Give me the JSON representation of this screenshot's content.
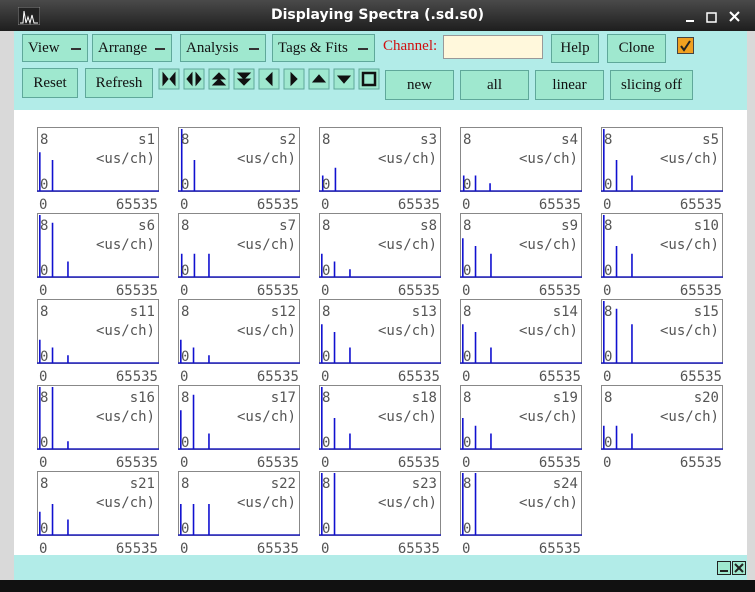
{
  "window": {
    "title": "Displaying Spectra (.sd.s0)"
  },
  "menus": [
    "View",
    "Arrange",
    "Analysis",
    "Tags & Fits"
  ],
  "channel_label": "Channel:",
  "buttons": [
    "Help",
    "Clone"
  ],
  "actions": [
    "Reset",
    "Refresh"
  ],
  "modes": [
    "new",
    "all",
    "linear",
    "slicing off"
  ],
  "spectra": [
    {
      "name": "s1",
      "unit": "<us/ch)",
      "xlim": [
        0,
        65535
      ],
      "ylim": [
        0,
        8
      ],
      "x": [
        1000,
        8000
      ],
      "y": [
        5,
        4
      ]
    },
    {
      "name": "s2",
      "unit": "<us/ch)",
      "xlim": [
        0,
        65535
      ],
      "ylim": [
        0,
        8
      ],
      "x": [
        1500,
        8500
      ],
      "y": [
        8,
        4
      ]
    },
    {
      "name": "s3",
      "unit": "<us/ch)",
      "xlim": [
        0,
        65535
      ],
      "ylim": [
        0,
        8
      ],
      "x": [
        1500,
        8500
      ],
      "y": [
        2,
        3
      ]
    },
    {
      "name": "s4",
      "unit": "<us/ch)",
      "xlim": [
        0,
        65535
      ],
      "ylim": [
        0,
        8
      ],
      "x": [
        1500,
        8000,
        16000
      ],
      "y": [
        2,
        2,
        1
      ]
    },
    {
      "name": "s5",
      "unit": "<us/ch)",
      "xlim": [
        0,
        65535
      ],
      "ylim": [
        0,
        8
      ],
      "x": [
        1000,
        8000,
        16500
      ],
      "y": [
        8,
        4,
        2
      ]
    },
    {
      "name": "s6",
      "unit": "<us/ch)",
      "xlim": [
        0,
        65535
      ],
      "ylim": [
        0,
        8
      ],
      "x": [
        1000,
        8000,
        16500
      ],
      "y": [
        8,
        7,
        2
      ]
    },
    {
      "name": "s7",
      "unit": "<us/ch)",
      "xlim": [
        0,
        65535
      ],
      "ylim": [
        0,
        8
      ],
      "x": [
        1500,
        8500,
        16500
      ],
      "y": [
        3,
        3,
        3
      ]
    },
    {
      "name": "s8",
      "unit": "<us/ch)",
      "xlim": [
        0,
        65535
      ],
      "ylim": [
        0,
        8
      ],
      "x": [
        1000,
        8000,
        16500
      ],
      "y": [
        3,
        2,
        1
      ]
    },
    {
      "name": "s9",
      "unit": "<us/ch)",
      "xlim": [
        0,
        65535
      ],
      "ylim": [
        0,
        8
      ],
      "x": [
        1000,
        8000,
        16500
      ],
      "y": [
        5,
        4,
        3
      ]
    },
    {
      "name": "s10",
      "unit": "<us/ch)",
      "xlim": [
        0,
        65535
      ],
      "ylim": [
        0,
        8
      ],
      "x": [
        1000,
        8000,
        16500
      ],
      "y": [
        8,
        4,
        3
      ]
    },
    {
      "name": "s11",
      "unit": "<us/ch)",
      "xlim": [
        0,
        65535
      ],
      "ylim": [
        0,
        8
      ],
      "x": [
        1000,
        8000,
        16500
      ],
      "y": [
        3,
        2,
        1
      ]
    },
    {
      "name": "s12",
      "unit": "<us/ch)",
      "xlim": [
        0,
        65535
      ],
      "ylim": [
        0,
        8
      ],
      "x": [
        1000,
        8000,
        16500
      ],
      "y": [
        3,
        2,
        1
      ]
    },
    {
      "name": "s13",
      "unit": "<us/ch)",
      "xlim": [
        0,
        65535
      ],
      "ylim": [
        0,
        8
      ],
      "x": [
        1000,
        8000,
        16500
      ],
      "y": [
        5,
        4,
        2
      ]
    },
    {
      "name": "s14",
      "unit": "<us/ch)",
      "xlim": [
        0,
        65535
      ],
      "ylim": [
        0,
        8
      ],
      "x": [
        1000,
        8000,
        16500
      ],
      "y": [
        5,
        4,
        2
      ]
    },
    {
      "name": "s15",
      "unit": "<us/ch)",
      "xlim": [
        0,
        65535
      ],
      "ylim": [
        0,
        8
      ],
      "x": [
        1000,
        8000,
        16500
      ],
      "y": [
        8,
        7,
        5
      ]
    },
    {
      "name": "s16",
      "unit": "<us/ch)",
      "xlim": [
        0,
        65535
      ],
      "ylim": [
        0,
        8
      ],
      "x": [
        1000,
        8000,
        16500
      ],
      "y": [
        8,
        8,
        1
      ]
    },
    {
      "name": "s17",
      "unit": "<us/ch)",
      "xlim": [
        0,
        65535
      ],
      "ylim": [
        0,
        8
      ],
      "x": [
        1000,
        8000,
        16500
      ],
      "y": [
        5,
        7,
        2
      ]
    },
    {
      "name": "s18",
      "unit": "<us/ch)",
      "xlim": [
        0,
        65535
      ],
      "ylim": [
        0,
        8
      ],
      "x": [
        1000,
        8000,
        16500
      ],
      "y": [
        8,
        4,
        2
      ]
    },
    {
      "name": "s19",
      "unit": "<us/ch)",
      "xlim": [
        0,
        65535
      ],
      "ylim": [
        0,
        8
      ],
      "x": [
        1000,
        8000,
        16500
      ],
      "y": [
        4,
        3,
        2
      ]
    },
    {
      "name": "s20",
      "unit": "<us/ch)",
      "xlim": [
        0,
        65535
      ],
      "ylim": [
        0,
        8
      ],
      "x": [
        1000,
        8000,
        16500
      ],
      "y": [
        3,
        3,
        2
      ]
    },
    {
      "name": "s21",
      "unit": "<us/ch)",
      "xlim": [
        0,
        65535
      ],
      "ylim": [
        0,
        8
      ],
      "x": [
        1000,
        8000,
        16500
      ],
      "y": [
        3,
        4,
        2
      ]
    },
    {
      "name": "s22",
      "unit": "<us/ch)",
      "xlim": [
        0,
        65535
      ],
      "ylim": [
        0,
        8
      ],
      "x": [
        1000,
        8000,
        16500
      ],
      "y": [
        4,
        4,
        4
      ]
    },
    {
      "name": "s23",
      "unit": "<us/ch)",
      "xlim": [
        0,
        65535
      ],
      "ylim": [
        0,
        8
      ],
      "x": [
        1000,
        8000
      ],
      "y": [
        8,
        8
      ]
    },
    {
      "name": "s24",
      "unit": "<us/ch)",
      "xlim": [
        0,
        65535
      ],
      "ylim": [
        0,
        8
      ],
      "x": [
        1000,
        8000
      ],
      "y": [
        8,
        8
      ]
    }
  ]
}
